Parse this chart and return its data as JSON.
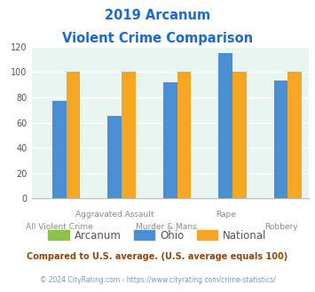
{
  "title_line1": "2019 Arcanum",
  "title_line2": "Violent Crime Comparison",
  "ohio_values": [
    77,
    65,
    92,
    115,
    93
  ],
  "national_values": [
    100,
    100,
    100,
    100,
    100
  ],
  "arcanum_values": [
    0,
    0,
    0,
    0,
    0
  ],
  "group_labels_top": [
    "",
    "Aggravated Assault",
    "",
    "Rape",
    ""
  ],
  "group_labels_bottom": [
    "All Violent Crime",
    "",
    "Murder & Mans...",
    "",
    "Robbery"
  ],
  "colors": {
    "Arcanum": "#8bc34a",
    "Ohio": "#4a8fd4",
    "National": "#f5a623"
  },
  "ylim": [
    0,
    120
  ],
  "yticks": [
    0,
    20,
    40,
    60,
    80,
    100,
    120
  ],
  "background_color": "#e8f4f0",
  "title_color": "#1a6bcc",
  "footer_text": "Compared to U.S. average. (U.S. average equals 100)",
  "copyright_text": "© 2024 CityRating.com - https://www.cityrating.com/crime-statistics/",
  "footer_color": "#994400",
  "copyright_color": "#7a9ab0"
}
